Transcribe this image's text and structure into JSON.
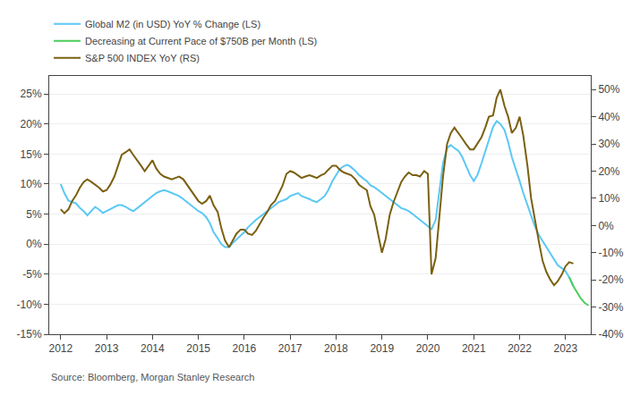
{
  "chart_data": {
    "type": "line",
    "annotations": [
      "Source: Bloomberg, Morgan Stanley Research"
    ],
    "xlim": [
      2011.75,
      2023.55
    ],
    "xticks": [
      2012,
      2013,
      2014,
      2015,
      2016,
      2017,
      2018,
      2019,
      2020,
      2021,
      2022,
      2023
    ],
    "ylim": [
      -15,
      28
    ],
    "yticks": [
      {
        "value": -15,
        "label": "-15%"
      },
      {
        "value": -10,
        "label": "-10%"
      },
      {
        "value": -5,
        "label": "-5%"
      },
      {
        "value": 0,
        "label": "0%"
      },
      {
        "value": 5,
        "label": "5%"
      },
      {
        "value": 10,
        "label": "10%"
      },
      {
        "value": 15,
        "label": "15%"
      },
      {
        "value": 20,
        "label": "20%"
      },
      {
        "value": 25,
        "label": "25%"
      }
    ],
    "y2lim": [
      -40,
      55
    ],
    "y2ticks": [
      {
        "value": -40,
        "label": "-40%"
      },
      {
        "value": -30,
        "label": "-30%"
      },
      {
        "value": -20,
        "label": "-20%"
      },
      {
        "value": -10,
        "label": "-10%"
      },
      {
        "value": 0,
        "label": "0%"
      },
      {
        "value": 10,
        "label": "10%"
      },
      {
        "value": 20,
        "label": "20%"
      },
      {
        "value": 30,
        "label": "30%"
      },
      {
        "value": 40,
        "label": "40%"
      },
      {
        "value": 50,
        "label": "50%"
      }
    ],
    "grid": true,
    "legend": "upper left",
    "series": [
      {
        "name": "Global M2 (in USD) YoY % Change (LS)",
        "color": "#5bc8f5",
        "x": [
          2012.0,
          2012.08,
          2012.17,
          2012.25,
          2012.33,
          2012.42,
          2012.5,
          2012.58,
          2012.67,
          2012.75,
          2012.83,
          2012.92,
          2013.0,
          2013.08,
          2013.17,
          2013.25,
          2013.33,
          2013.42,
          2013.5,
          2013.58,
          2013.67,
          2013.75,
          2013.83,
          2013.92,
          2014.0,
          2014.08,
          2014.17,
          2014.25,
          2014.33,
          2014.42,
          2014.5,
          2014.58,
          2014.67,
          2014.75,
          2014.83,
          2014.92,
          2015.0,
          2015.08,
          2015.17,
          2015.25,
          2015.33,
          2015.42,
          2015.5,
          2015.58,
          2015.67,
          2015.75,
          2015.83,
          2015.92,
          2016.0,
          2016.08,
          2016.17,
          2016.25,
          2016.33,
          2016.42,
          2016.5,
          2016.58,
          2016.67,
          2016.75,
          2016.83,
          2016.92,
          2017.0,
          2017.08,
          2017.17,
          2017.25,
          2017.33,
          2017.42,
          2017.5,
          2017.58,
          2017.67,
          2017.75,
          2017.83,
          2017.92,
          2018.0,
          2018.08,
          2018.17,
          2018.25,
          2018.33,
          2018.42,
          2018.5,
          2018.58,
          2018.67,
          2018.75,
          2018.83,
          2018.92,
          2019.0,
          2019.08,
          2019.17,
          2019.25,
          2019.33,
          2019.42,
          2019.5,
          2019.58,
          2019.67,
          2019.75,
          2019.83,
          2019.92,
          2020.0,
          2020.08,
          2020.17,
          2020.25,
          2020.33,
          2020.42,
          2020.5,
          2020.58,
          2020.67,
          2020.75,
          2020.83,
          2020.92,
          2021.0,
          2021.08,
          2021.17,
          2021.25,
          2021.33,
          2021.42,
          2021.5,
          2021.58,
          2021.67,
          2021.75,
          2021.83,
          2021.92,
          2022.0,
          2022.08,
          2022.17,
          2022.25,
          2022.33,
          2022.42,
          2022.5,
          2022.58,
          2022.67,
          2022.75,
          2022.83,
          2022.92,
          2023.0,
          2023.08,
          2023.17
        ],
        "values": [
          10.0,
          8.5,
          7.2,
          7.0,
          6.8,
          6.0,
          5.5,
          4.8,
          5.5,
          6.2,
          5.8,
          5.2,
          5.5,
          5.8,
          6.2,
          6.5,
          6.5,
          6.2,
          5.8,
          5.5,
          6.0,
          6.5,
          7.0,
          7.5,
          8.0,
          8.5,
          8.8,
          9.0,
          8.8,
          8.5,
          8.2,
          8.0,
          7.5,
          7.0,
          6.5,
          6.0,
          5.5,
          5.2,
          4.5,
          3.5,
          2.0,
          1.0,
          0.0,
          -0.5,
          -0.5,
          0.2,
          0.8,
          1.5,
          2.0,
          2.8,
          3.5,
          4.0,
          4.5,
          5.0,
          5.5,
          6.0,
          6.5,
          7.0,
          7.2,
          7.5,
          8.0,
          8.2,
          8.5,
          8.0,
          7.8,
          7.5,
          7.2,
          7.0,
          7.5,
          8.0,
          9.0,
          10.5,
          11.5,
          12.5,
          13.0,
          13.2,
          12.8,
          12.2,
          11.5,
          11.0,
          10.5,
          9.8,
          9.5,
          9.0,
          8.5,
          8.0,
          7.5,
          7.0,
          6.5,
          6.0,
          5.8,
          5.5,
          5.0,
          4.5,
          4.0,
          3.5,
          3.0,
          2.5,
          4.0,
          8.5,
          13.5,
          16.0,
          16.5,
          16.0,
          15.5,
          14.5,
          13.0,
          11.5,
          10.5,
          11.5,
          13.5,
          15.5,
          17.5,
          19.5,
          20.5,
          20.0,
          19.0,
          17.0,
          14.5,
          12.5,
          10.5,
          8.5,
          6.5,
          4.5,
          3.0,
          1.5,
          0.5,
          -0.5,
          -1.5,
          -2.5,
          -3.5,
          -4.0,
          -4.5,
          -5.5,
          -7.0
        ]
      },
      {
        "name": "Decreasing at Current Pace of $750B per Month (LS)",
        "color": "#4ccc5a",
        "x": [
          2023.08,
          2023.17,
          2023.25,
          2023.33,
          2023.42,
          2023.5
        ],
        "values": [
          -5.5,
          -7.0,
          -8.0,
          -9.0,
          -9.8,
          -10.2
        ]
      },
      {
        "name": "S&P 500 INDEX YoY (RS)",
        "color": "#7a6010",
        "axis": "y2",
        "x": [
          2012.0,
          2012.08,
          2012.17,
          2012.25,
          2012.33,
          2012.42,
          2012.5,
          2012.58,
          2012.67,
          2012.75,
          2012.83,
          2012.92,
          2013.0,
          2013.08,
          2013.17,
          2013.25,
          2013.33,
          2013.42,
          2013.5,
          2013.58,
          2013.67,
          2013.75,
          2013.83,
          2013.92,
          2014.0,
          2014.08,
          2014.17,
          2014.25,
          2014.33,
          2014.42,
          2014.5,
          2014.58,
          2014.67,
          2014.75,
          2014.83,
          2014.92,
          2015.0,
          2015.08,
          2015.17,
          2015.25,
          2015.33,
          2015.42,
          2015.5,
          2015.58,
          2015.67,
          2015.75,
          2015.83,
          2015.92,
          2016.0,
          2016.08,
          2016.17,
          2016.25,
          2016.33,
          2016.42,
          2016.5,
          2016.58,
          2016.67,
          2016.75,
          2016.83,
          2016.92,
          2017.0,
          2017.08,
          2017.17,
          2017.25,
          2017.33,
          2017.42,
          2017.5,
          2017.58,
          2017.67,
          2017.75,
          2017.83,
          2017.92,
          2018.0,
          2018.08,
          2018.17,
          2018.25,
          2018.33,
          2018.42,
          2018.5,
          2018.58,
          2018.67,
          2018.75,
          2018.83,
          2018.92,
          2019.0,
          2019.08,
          2019.17,
          2019.25,
          2019.33,
          2019.42,
          2019.5,
          2019.58,
          2019.67,
          2019.75,
          2019.83,
          2019.92,
          2020.0,
          2020.08,
          2020.17,
          2020.25,
          2020.33,
          2020.42,
          2020.5,
          2020.58,
          2020.67,
          2020.75,
          2020.83,
          2020.92,
          2021.0,
          2021.08,
          2021.17,
          2021.25,
          2021.33,
          2021.42,
          2021.5,
          2021.58,
          2021.67,
          2021.75,
          2021.83,
          2021.92,
          2022.0,
          2022.08,
          2022.17,
          2022.25,
          2022.33,
          2022.42,
          2022.5,
          2022.58,
          2022.67,
          2022.75,
          2022.83,
          2022.92,
          2023.0,
          2023.08,
          2023.17
        ],
        "values": [
          6.0,
          4.5,
          6.0,
          9.0,
          11.0,
          14.0,
          16.0,
          17.0,
          16.0,
          15.0,
          14.0,
          12.5,
          13.0,
          15.0,
          18.0,
          22.0,
          26.0,
          27.0,
          28.0,
          26.0,
          24.0,
          22.0,
          20.0,
          22.0,
          24.0,
          21.0,
          19.0,
          18.0,
          17.5,
          17.0,
          17.5,
          18.0,
          17.0,
          15.0,
          13.0,
          11.0,
          9.0,
          8.0,
          9.0,
          11.0,
          7.5,
          5.0,
          -1.0,
          -5.5,
          -8.0,
          -5.5,
          -3.0,
          -1.5,
          -1.5,
          -3.0,
          -3.5,
          -2.0,
          0.5,
          3.0,
          5.0,
          7.5,
          9.0,
          11.5,
          14.5,
          19.0,
          20.0,
          19.5,
          18.5,
          17.5,
          18.0,
          18.5,
          18.0,
          17.5,
          18.5,
          19.0,
          20.5,
          22.0,
          22.0,
          20.5,
          19.5,
          19.0,
          18.5,
          17.0,
          15.0,
          14.0,
          13.0,
          7.0,
          4.0,
          -3.5,
          -10.0,
          -5.0,
          4.0,
          8.5,
          12.0,
          16.0,
          18.0,
          19.5,
          18.5,
          18.5,
          18.0,
          20.0,
          19.0,
          -18.0,
          -12.0,
          2.0,
          18.0,
          30.0,
          34.0,
          36.0,
          34.0,
          32.0,
          30.0,
          28.0,
          28.0,
          30.0,
          32.5,
          36.0,
          40.0,
          40.5,
          47.0,
          50.0,
          44.0,
          40.0,
          34.0,
          36.0,
          40.0,
          33.0,
          22.0,
          10.0,
          2.0,
          -6.0,
          -13.0,
          -17.0,
          -20.0,
          -22.0,
          -20.5,
          -18.0,
          -15.0,
          -13.5,
          -14.0
        ]
      }
    ]
  }
}
